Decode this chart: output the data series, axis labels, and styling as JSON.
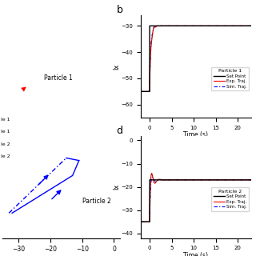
{
  "panel_b": {
    "title": "b",
    "particle_label": "Particle 1",
    "ylabel": "lx",
    "xlabel": "Time (s)",
    "xlim": [
      -2,
      23
    ],
    "ylim": [
      -65,
      -26
    ],
    "yticks": [
      -60,
      -50,
      -40,
      -30
    ],
    "xticks": [
      0,
      5,
      10,
      15,
      20
    ],
    "set_point_before": -55,
    "set_point_after": -30,
    "colors": {
      "set_point": "#000000",
      "exp_traj": "#cc0000",
      "sim_traj": "#2222cc"
    }
  },
  "panel_d": {
    "title": "d",
    "particle_label": "Particle 2",
    "ylabel": "lx",
    "xlabel": "Time (s)",
    "xlim": [
      -2,
      23
    ],
    "ylim": [
      -42,
      2
    ],
    "yticks": [
      -40,
      -30,
      -20,
      -10,
      0
    ],
    "xticks": [
      0,
      5,
      10,
      15,
      20
    ],
    "set_point_before": -35,
    "set_point_after": -17,
    "colors": {
      "set_point": "#000000",
      "exp_traj": "#cc0000",
      "sim_traj": "#2222cc"
    }
  },
  "panel_a": {
    "xlim": [
      -35,
      2
    ],
    "ylim": [
      -78,
      12
    ],
    "xticks": [
      -30,
      -20,
      -10,
      0
    ],
    "particle1_label": "Particle 1",
    "particle2_label": "Particle 2",
    "legend_items": [
      "le 1",
      "le 1",
      "le 2",
      "le 2"
    ]
  },
  "figure_bg": "#ffffff"
}
